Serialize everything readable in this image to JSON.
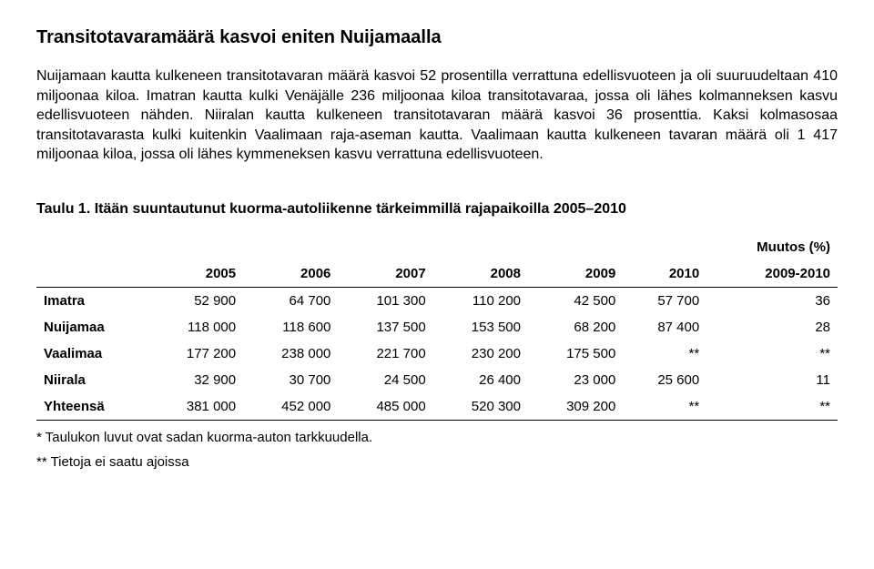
{
  "title": "Transitotavaramäärä kasvoi eniten Nuijamaalla",
  "paragraph": "Nuijamaan kautta kulkeneen transitotavaran määrä kasvoi 52 prosentilla verrattuna edellisvuoteen ja oli suuruudeltaan 410 miljoonaa kiloa. Imatran kautta kulki Venäjälle 236 miljoonaa kiloa transitotavaraa, jossa oli lähes kolmanneksen kasvu edellisvuoteen nähden. Niiralan kautta kulkeneen transitotavaran määrä kasvoi 36 prosenttia. Kaksi kolmasosaa transitotavarasta kulki kuitenkin Vaalimaan raja-aseman kautta. Vaalimaan kautta kulkeneen tavaran määrä oli 1 417 miljoonaa kiloa, jossa oli lähes kymmeneksen kasvu verrattuna edellisvuoteen.",
  "table_caption": "Taulu 1. Itään suuntautunut kuorma-autoliikenne tärkeimmillä rajapaikoilla 2005–2010",
  "muutos_top": "Muutos (%)",
  "col_years": [
    "2005",
    "2006",
    "2007",
    "2008",
    "2009",
    "2010"
  ],
  "col_change": "2009-2010",
  "rows": [
    {
      "label": "Imatra",
      "c": [
        "52 900",
        "64 700",
        "101 300",
        "110 200",
        "42 500",
        "57 700",
        "36"
      ]
    },
    {
      "label": "Nuijamaa",
      "c": [
        "118 000",
        "118 600",
        "137 500",
        "153 500",
        "68 200",
        "87 400",
        "28"
      ]
    },
    {
      "label": "Vaalimaa",
      "c": [
        "177 200",
        "238 000",
        "221 700",
        "230 200",
        "175 500",
        "**",
        "**"
      ]
    },
    {
      "label": "Niirala",
      "c": [
        "32 900",
        "30 700",
        "24 500",
        "26 400",
        "23 000",
        "25 600",
        "11"
      ]
    },
    {
      "label": "Yhteensä",
      "c": [
        "381 000",
        "452 000",
        "485 000",
        "520 300",
        "309 200",
        "**",
        "**"
      ]
    }
  ],
  "footnote1": "* Taulukon luvut ovat sadan kuorma-auton tarkkuudella.",
  "footnote2": "** Tietoja ei saatu ajoissa"
}
